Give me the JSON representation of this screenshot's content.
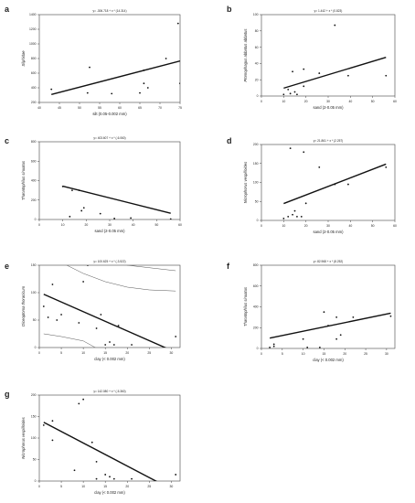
{
  "chart_data": [
    {
      "panel": "a",
      "type": "scatter",
      "equation": "y= -306.718 + x * (14.314)",
      "xlabel": "silt (0.05-0.002 mm)",
      "ylabel": "Silphidae",
      "xlim": [
        40,
        75
      ],
      "ylim": [
        200,
        1400
      ],
      "xticks": [
        40,
        45,
        50,
        55,
        60,
        65,
        70,
        75
      ],
      "yticks": [
        200,
        400,
        600,
        800,
        1000,
        1200,
        1400
      ],
      "points": [
        [
          43,
          380
        ],
        [
          52,
          330
        ],
        [
          52.5,
          680
        ],
        [
          58,
          320
        ],
        [
          65,
          330
        ],
        [
          66,
          460
        ],
        [
          66,
          640
        ],
        [
          67,
          400
        ],
        [
          71.5,
          800
        ],
        [
          74.5,
          1280
        ],
        [
          75,
          460
        ]
      ],
      "fit": [
        [
          43,
          308.8
        ],
        [
          75,
          766.8
        ]
      ],
      "ci": null
    },
    {
      "panel": "b",
      "type": "scatter",
      "equation": "y= 1.442 + x * (0.823)",
      "xlabel": "sand (2-0.05 mm)",
      "ylabel": "Ptomophagus abbatus abbatus",
      "xlim": [
        0,
        60
      ],
      "ylim": [
        0,
        100
      ],
      "xticks": [
        0,
        10,
        20,
        30,
        40,
        50,
        60
      ],
      "yticks": [
        0,
        20,
        40,
        60,
        80,
        100
      ],
      "points": [
        [
          10,
          2
        ],
        [
          12,
          8
        ],
        [
          13,
          3
        ],
        [
          14,
          30
        ],
        [
          15,
          5
        ],
        [
          16,
          2
        ],
        [
          19,
          12
        ],
        [
          19,
          33
        ],
        [
          26,
          28
        ],
        [
          33,
          87
        ],
        [
          39,
          25
        ],
        [
          56,
          25
        ]
      ],
      "fit": [
        [
          10,
          9.7
        ],
        [
          56,
          47.5
        ]
      ],
      "ci": null
    },
    {
      "panel": "c",
      "type": "scatter",
      "equation": "y= 403.607 + x * (-6.060)",
      "xlabel": "sand (2-0.05 mm)",
      "ylabel": "Thanatophilus sinuatus",
      "xlim": [
        0,
        60
      ],
      "ylim": [
        0,
        800
      ],
      "xticks": [
        0,
        10,
        20,
        30,
        40,
        50,
        60
      ],
      "yticks": [
        0,
        200,
        400,
        600,
        800
      ],
      "points": [
        [
          10,
          340
        ],
        [
          13,
          30
        ],
        [
          14,
          300
        ],
        [
          15,
          820
        ],
        [
          17,
          300
        ],
        [
          18,
          90
        ],
        [
          19,
          120
        ],
        [
          26,
          60
        ],
        [
          32,
          10
        ],
        [
          39,
          15
        ],
        [
          56,
          5
        ]
      ],
      "fit": [
        [
          10,
          343
        ],
        [
          56,
          64.2
        ]
      ],
      "ci": null
    },
    {
      "panel": "d",
      "type": "scatter",
      "equation": "y= 21.861 + x * (2.257)",
      "xlabel": "sand (2-0.05 mm)",
      "ylabel": "Nicrophorus vespilloides",
      "xlim": [
        0,
        60
      ],
      "ylim": [
        0,
        200
      ],
      "xticks": [
        0,
        10,
        20,
        30,
        40,
        50,
        60
      ],
      "yticks": [
        0,
        50,
        100,
        150,
        200
      ],
      "points": [
        [
          10,
          5
        ],
        [
          12,
          10
        ],
        [
          13,
          190
        ],
        [
          14,
          15
        ],
        [
          15,
          25
        ],
        [
          16,
          10
        ],
        [
          18,
          10
        ],
        [
          19,
          180
        ],
        [
          20,
          45
        ],
        [
          26,
          140
        ],
        [
          33,
          95
        ],
        [
          39,
          95
        ],
        [
          56,
          140
        ]
      ],
      "fit": [
        [
          10,
          44.4
        ],
        [
          56,
          148.3
        ]
      ],
      "ci": null
    },
    {
      "panel": "e",
      "type": "scatter",
      "equation": "y= 100.625 + x * (-3.522)",
      "xlabel": "clay (< 0.002 mm)",
      "ylabel": "Oiceoptoma thoracicum",
      "xlim": [
        0,
        32
      ],
      "ylim": [
        0,
        150
      ],
      "xticks": [
        0,
        5,
        10,
        15,
        20,
        25,
        30
      ],
      "yticks": [
        0,
        50,
        100,
        150
      ],
      "points": [
        [
          1,
          75
        ],
        [
          2,
          55
        ],
        [
          3,
          115
        ],
        [
          4,
          50
        ],
        [
          5,
          60
        ],
        [
          9,
          45
        ],
        [
          10,
          120
        ],
        [
          11,
          150
        ],
        [
          13,
          35
        ],
        [
          14,
          60
        ],
        [
          15,
          5
        ],
        [
          16,
          10
        ],
        [
          17,
          5
        ],
        [
          18,
          40
        ],
        [
          21,
          5
        ],
        [
          31,
          20
        ]
      ],
      "fit": [
        [
          1,
          97.1
        ],
        [
          31,
          -8.6
        ]
      ],
      "ci": {
        "upper": [
          [
            1,
            170
          ],
          [
            5,
            155
          ],
          [
            10,
            135
          ],
          [
            15,
            120
          ],
          [
            20,
            110
          ],
          [
            25,
            105
          ],
          [
            31,
            103
          ]
        ],
        "lower": [
          [
            1,
            25
          ],
          [
            5,
            20
          ],
          [
            10,
            12
          ],
          [
            15,
            -10
          ],
          [
            20,
            -40
          ],
          [
            25,
            -75
          ],
          [
            31,
            -115
          ]
        ],
        "outer_upper": [
          [
            1,
            200
          ],
          [
            10,
            175
          ],
          [
            20,
            150
          ],
          [
            31,
            140
          ]
        ],
        "outer_lower": [
          [
            1,
            -5
          ],
          [
            10,
            -30
          ],
          [
            20,
            -75
          ],
          [
            31,
            -140
          ]
        ]
      }
    },
    {
      "panel": "f",
      "type": "scatter",
      "equation": "y= 82.968 + x * (8.252)",
      "xlabel": "clay (< 0.002 mm)",
      "ylabel": "Thanatophilus sinuatus",
      "xlim": [
        0,
        32
      ],
      "ylim": [
        0,
        800
      ],
      "xticks": [
        0,
        5,
        10,
        15,
        20,
        25,
        30
      ],
      "yticks": [
        0,
        200,
        400,
        600,
        800
      ],
      "points": [
        [
          2,
          10
        ],
        [
          3,
          20
        ],
        [
          3,
          40
        ],
        [
          9,
          820
        ],
        [
          10,
          90
        ],
        [
          11,
          10
        ],
        [
          14,
          10
        ],
        [
          15,
          350
        ],
        [
          16,
          220
        ],
        [
          18,
          300
        ],
        [
          18,
          90
        ],
        [
          19,
          130
        ],
        [
          22,
          300
        ],
        [
          31,
          310
        ]
      ],
      "fit": [
        [
          2,
          99.5
        ],
        [
          31,
          338.8
        ]
      ],
      "ci": null
    },
    {
      "panel": "g",
      "type": "scatter",
      "equation": "y= 142.080 + x * (-5.360)",
      "xlabel": "clay (< 0.002 mm)",
      "ylabel": "Nicrophorus vespilloides",
      "xlim": [
        0,
        32
      ],
      "ylim": [
        0,
        200
      ],
      "xticks": [
        0,
        5,
        10,
        15,
        20,
        25,
        30
      ],
      "yticks": [
        0,
        50,
        100,
        150,
        200
      ],
      "points": [
        [
          1,
          130
        ],
        [
          3,
          140
        ],
        [
          3,
          95
        ],
        [
          8,
          25
        ],
        [
          9,
          180
        ],
        [
          10,
          190
        ],
        [
          12,
          90
        ],
        [
          13,
          45
        ],
        [
          13,
          5
        ],
        [
          15,
          15
        ],
        [
          16,
          10
        ],
        [
          17,
          5
        ],
        [
          21,
          5
        ],
        [
          31,
          15
        ]
      ],
      "fit": [
        [
          1,
          136.7
        ],
        [
          31,
          -24.1
        ]
      ],
      "ci": null
    }
  ]
}
